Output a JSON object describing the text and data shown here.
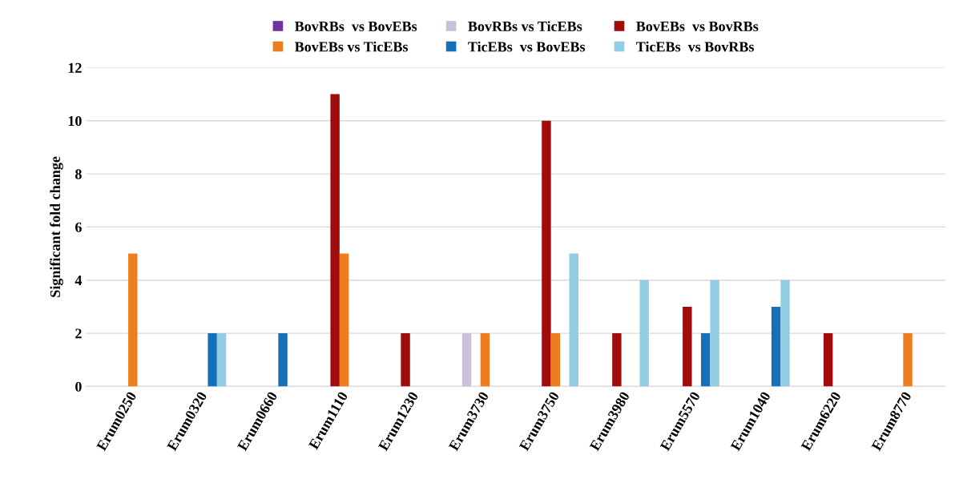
{
  "chart_data": {
    "type": "bar",
    "ylabel": "Significant fold change",
    "categories": [
      "Erum0250",
      "Erum0320",
      "Erum0660",
      "Erum1110",
      "Erum1230",
      "Erum3730",
      "Erum3750",
      "Erum3980",
      "Erum5570",
      "Erum1040",
      "Erum6220",
      "Erum8770"
    ],
    "series": [
      {
        "name": "BovRBs  vs BovEBs",
        "color": "#7030a0",
        "values": [
          0,
          0,
          0,
          0,
          0,
          0,
          0,
          0,
          0,
          0,
          0,
          0
        ]
      },
      {
        "name": "BovRBs vs TicEBs",
        "color": "#c9c0d9",
        "values": [
          0,
          0,
          0,
          0,
          0,
          2,
          0,
          0,
          0,
          0,
          0,
          0
        ]
      },
      {
        "name": "BovEBs  vs BovRBs",
        "color": "#a00c0c",
        "values": [
          0,
          0,
          0,
          11,
          2,
          0,
          10,
          2,
          3,
          0,
          2,
          0
        ]
      },
      {
        "name": "BovEBs vs TicEBs",
        "color": "#ed7d1f",
        "values": [
          5,
          0,
          0,
          5,
          0,
          2,
          2,
          0,
          0,
          0,
          0,
          2
        ]
      },
      {
        "name": "TicEBs  vs BovEBs",
        "color": "#1670b8",
        "values": [
          0,
          2,
          2,
          0,
          0,
          0,
          0,
          0,
          2,
          3,
          0,
          0
        ]
      },
      {
        "name": "TicEBs  vs BovRBs",
        "color": "#92cde3",
        "values": [
          0,
          2,
          0,
          0,
          0,
          0,
          5,
          4,
          4,
          4,
          0,
          0
        ]
      }
    ],
    "ylim": [
      0,
      12
    ],
    "yticks": [
      0,
      2,
      4,
      6,
      8,
      10,
      12
    ],
    "grid": "y",
    "legend": "top"
  }
}
